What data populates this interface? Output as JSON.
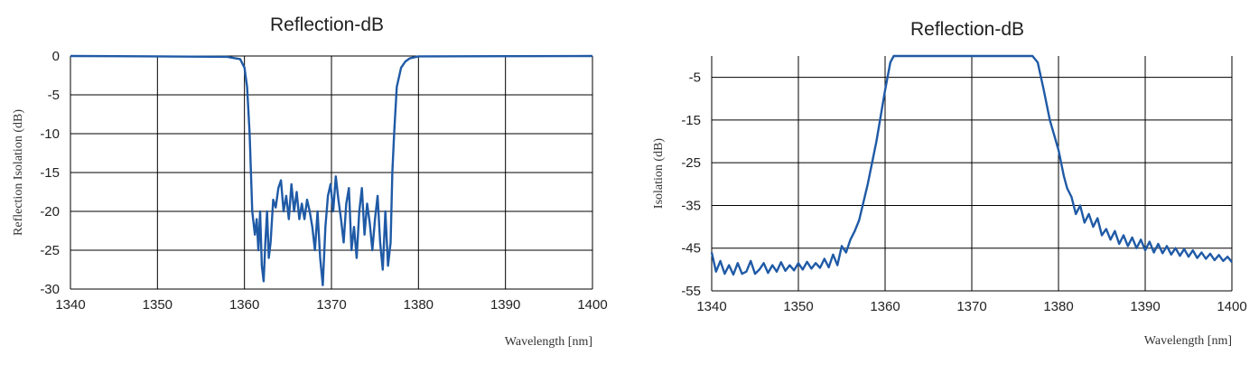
{
  "chart_data": [
    {
      "type": "line",
      "title": "Reflection-dB",
      "xlabel": "Wavelength [nm]",
      "ylabel": "Reflection Isolation (dB)",
      "xlim": [
        1340,
        1400
      ],
      "ylim": [
        -30,
        0
      ],
      "xticks": [
        "1340",
        "1350",
        "1360",
        "1370",
        "1380",
        "1390",
        "1400"
      ],
      "yticks": [
        "0",
        "-5",
        "-10",
        "-15",
        "-20",
        "-25",
        "-30"
      ],
      "grid": true,
      "line_color": "#1f5aa6",
      "series": [
        {
          "x": [
            1340,
            1350,
            1358,
            1359.5,
            1360,
            1360.3,
            1360.6,
            1360.9,
            1361.2,
            1361.4,
            1361.6,
            1361.8,
            1362,
            1362.2,
            1362.4,
            1362.6,
            1362.8,
            1363,
            1363.3,
            1363.6,
            1363.9,
            1364.2,
            1364.5,
            1364.8,
            1365.1,
            1365.4,
            1365.7,
            1366,
            1366.3,
            1366.6,
            1366.9,
            1367.2,
            1367.5,
            1367.8,
            1368.1,
            1368.4,
            1368.7,
            1369,
            1369.3,
            1369.6,
            1369.9,
            1370.2,
            1370.5,
            1370.8,
            1371.1,
            1371.4,
            1371.7,
            1372,
            1372.3,
            1372.6,
            1372.9,
            1373.2,
            1373.5,
            1373.8,
            1374.1,
            1374.4,
            1374.7,
            1375,
            1375.3,
            1375.6,
            1375.9,
            1376.2,
            1376.5,
            1376.8,
            1377,
            1377.2,
            1377.5,
            1378,
            1378.5,
            1379,
            1380,
            1390,
            1400
          ],
          "y": [
            0,
            -0.05,
            -0.1,
            -0.4,
            -1.5,
            -4,
            -10,
            -20,
            -23,
            -21,
            -25,
            -20,
            -27,
            -29,
            -24,
            -20,
            -26,
            -24,
            -18.5,
            -19.5,
            -17,
            -16,
            -20,
            -18,
            -21,
            -16.5,
            -20,
            -17.5,
            -21,
            -19,
            -21,
            -18.5,
            -20,
            -22,
            -25,
            -20,
            -26,
            -29.5,
            -22,
            -18,
            -16.5,
            -20,
            -15.5,
            -18.5,
            -21,
            -24,
            -19,
            -17,
            -25,
            -22,
            -26,
            -20,
            -17,
            -23,
            -19,
            -21.5,
            -25,
            -21,
            -18,
            -24,
            -27.5,
            -20,
            -27,
            -24,
            -15,
            -10,
            -4,
            -1.5,
            -0.7,
            -0.3,
            -0.05,
            -0.02,
            0
          ]
        }
      ]
    },
    {
      "type": "line",
      "title": "Reflection-dB",
      "xlabel": "Wavelength [nm]",
      "ylabel": "Isolation (dB)",
      "xlim": [
        1340,
        1400
      ],
      "ylim": [
        -55,
        0
      ],
      "xticks": [
        "1340",
        "1350",
        "1360",
        "1370",
        "1380",
        "1390",
        "1400"
      ],
      "yticks": [
        "-5",
        "-15",
        "-25",
        "-35",
        "-45",
        "-55"
      ],
      "grid": true,
      "line_color": "#1f5aa6",
      "series": [
        {
          "x": [
            1340,
            1340.5,
            1341,
            1341.5,
            1342,
            1342.5,
            1343,
            1343.5,
            1344,
            1344.5,
            1345,
            1345.5,
            1346,
            1346.5,
            1347,
            1347.5,
            1348,
            1348.5,
            1349,
            1349.5,
            1350,
            1350.5,
            1351,
            1351.5,
            1352,
            1352.5,
            1353,
            1353.5,
            1354,
            1354.5,
            1355,
            1355.5,
            1356,
            1356.5,
            1357,
            1358,
            1359,
            1360,
            1360.6,
            1361,
            1365,
            1370,
            1375,
            1377,
            1377.6,
            1378.3,
            1379,
            1380,
            1380.6,
            1381,
            1381.5,
            1382,
            1382.5,
            1383,
            1383.5,
            1384,
            1384.5,
            1385,
            1385.5,
            1386,
            1386.5,
            1387,
            1387.5,
            1388,
            1388.5,
            1389,
            1389.5,
            1390,
            1390.5,
            1391,
            1391.5,
            1392,
            1392.5,
            1393,
            1393.5,
            1394,
            1394.5,
            1395,
            1395.5,
            1396,
            1396.5,
            1397,
            1397.5,
            1398,
            1398.5,
            1399,
            1399.5,
            1400
          ],
          "y": [
            -46,
            -50.5,
            -48,
            -51,
            -49,
            -51.2,
            -48.5,
            -51,
            -50.5,
            -48,
            -51,
            -50,
            -48.5,
            -50.8,
            -49,
            -50.5,
            -48.3,
            -50.3,
            -49,
            -50.2,
            -48.5,
            -50,
            -48.2,
            -49.8,
            -48.5,
            -49.6,
            -47.5,
            -49.5,
            -46.5,
            -49,
            -44.5,
            -46,
            -43,
            -41,
            -38.5,
            -30,
            -20,
            -8,
            -1.5,
            0,
            0,
            0,
            0,
            0,
            -1.5,
            -8,
            -15,
            -22,
            -28,
            -31,
            -33,
            -37,
            -35,
            -39,
            -37,
            -40,
            -38,
            -42,
            -40.5,
            -43,
            -41,
            -44,
            -42,
            -44.5,
            -42.5,
            -45,
            -43,
            -45.5,
            -43.5,
            -46,
            -44,
            -46.2,
            -44.5,
            -46.5,
            -45,
            -46.8,
            -45.2,
            -47,
            -45.5,
            -47.3,
            -46,
            -47.5,
            -46.3,
            -47.8,
            -46.6,
            -48,
            -47,
            -48.3
          ]
        }
      ]
    }
  ]
}
